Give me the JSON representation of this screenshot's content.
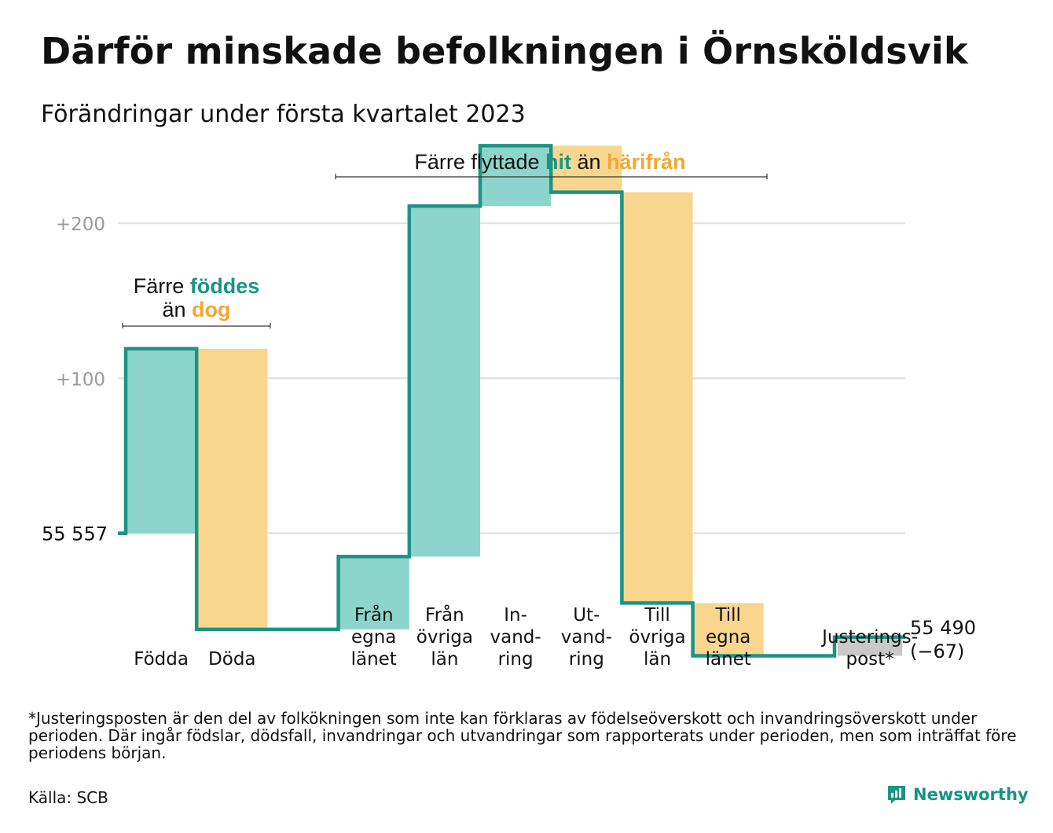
{
  "title": "Därför minskade befolkningen i Örnsköldsvik",
  "subtitle": "Förändringar under första kvartalet 2023",
  "footnote": "*Justeringsposten är den del av folkökningen som inte kan förklaras av födelseöverskott och invandringsöverskott under perioden. Där ingår födslar, dödsfall, invandringar och utvandringar som rapporterats under perioden, men som inträffat före periodens början.",
  "source": "Källa: SCB",
  "brand": "Newsworthy",
  "colors": {
    "increase": "#8dd5cc",
    "decrease": "#f9d68e",
    "adjustment": "#c8c8c8",
    "line": "#1b9484",
    "accent_teal": "#1b9484",
    "accent_orange": "#f2a733",
    "grid": "#e2e2e2",
    "tick_text": "#9a9a9a"
  },
  "annotations": {
    "births_deaths": {
      "line1_prefix": "Färre ",
      "line1_highlight": "föddes",
      "line2_prefix": "än ",
      "line2_highlight": "dog"
    },
    "migration": {
      "prefix": "Färre flyttade ",
      "hit": "hit",
      "middle": " än ",
      "harifran": "härifrån"
    }
  },
  "chart_data": {
    "type": "waterfall",
    "start_label": "55 557",
    "start_value": 55557,
    "end_label_line1": "55 490",
    "end_label_line2": "(−67)",
    "end_value": 55490,
    "change": -67,
    "y_ticks": [
      {
        "value": 55757,
        "label": "+200"
      },
      {
        "value": 55657,
        "label": "+100"
      },
      {
        "value": 55557,
        "label": ""
      }
    ],
    "ylim": [
      55460,
      55830
    ],
    "grid": true,
    "steps": [
      {
        "key": "fodda",
        "label_lines": [
          "Födda"
        ],
        "delta": 119,
        "kind": "increase"
      },
      {
        "key": "doda",
        "label_lines": [
          "Döda"
        ],
        "delta": -181,
        "kind": "decrease"
      },
      {
        "key": "gap1",
        "label_lines": [],
        "delta": 0,
        "kind": "gap"
      },
      {
        "key": "fran_egna",
        "label_lines": [
          "Från",
          "egna",
          "länet"
        ],
        "delta": 47,
        "kind": "increase"
      },
      {
        "key": "fran_ovriga",
        "label_lines": [
          "Från",
          "övriga",
          "län"
        ],
        "delta": 226,
        "kind": "increase"
      },
      {
        "key": "invandring",
        "label_lines": [
          "In-",
          "vand-",
          "ring"
        ],
        "delta": 39,
        "kind": "increase"
      },
      {
        "key": "utvandring",
        "label_lines": [
          "Ut-",
          "vand-",
          "ring"
        ],
        "delta": -30,
        "kind": "decrease"
      },
      {
        "key": "till_ovriga",
        "label_lines": [
          "Till",
          "övriga",
          "län"
        ],
        "delta": -265,
        "kind": "decrease"
      },
      {
        "key": "till_egna",
        "label_lines": [
          "Till",
          "egna",
          "länet"
        ],
        "delta": -34,
        "kind": "decrease"
      },
      {
        "key": "gap2",
        "label_lines": [],
        "delta": 0,
        "kind": "gap"
      },
      {
        "key": "justering",
        "label_lines": [
          "Justerings-",
          "post*"
        ],
        "delta": 12,
        "kind": "adjustment"
      }
    ]
  }
}
